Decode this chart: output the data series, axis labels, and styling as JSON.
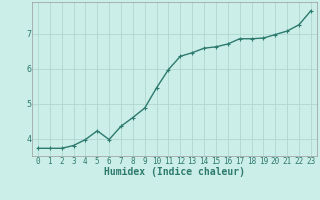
{
  "x": [
    0,
    1,
    2,
    3,
    4,
    5,
    6,
    7,
    8,
    9,
    10,
    11,
    12,
    13,
    14,
    15,
    16,
    17,
    18,
    19,
    20,
    21,
    22,
    23
  ],
  "y": [
    3.72,
    3.72,
    3.72,
    3.8,
    3.97,
    4.22,
    3.97,
    4.35,
    4.6,
    4.87,
    5.45,
    5.97,
    6.35,
    6.45,
    6.58,
    6.62,
    6.7,
    6.85,
    6.85,
    6.87,
    6.97,
    7.07,
    7.25,
    7.65
  ],
  "line_color": "#2d7a6e",
  "marker": "+",
  "marker_size": 3,
  "background_color": "#cceee8",
  "grid_color": "#b0d8d0",
  "xlabel": "Humidex (Indice chaleur)",
  "xlabel_fontsize": 7,
  "tick_fontsize": 5.5,
  "ylabel_ticks": [
    4,
    5,
    6,
    7
  ],
  "xlim": [
    -0.5,
    23.5
  ],
  "ylim": [
    3.5,
    7.9
  ],
  "line_width": 1.0
}
